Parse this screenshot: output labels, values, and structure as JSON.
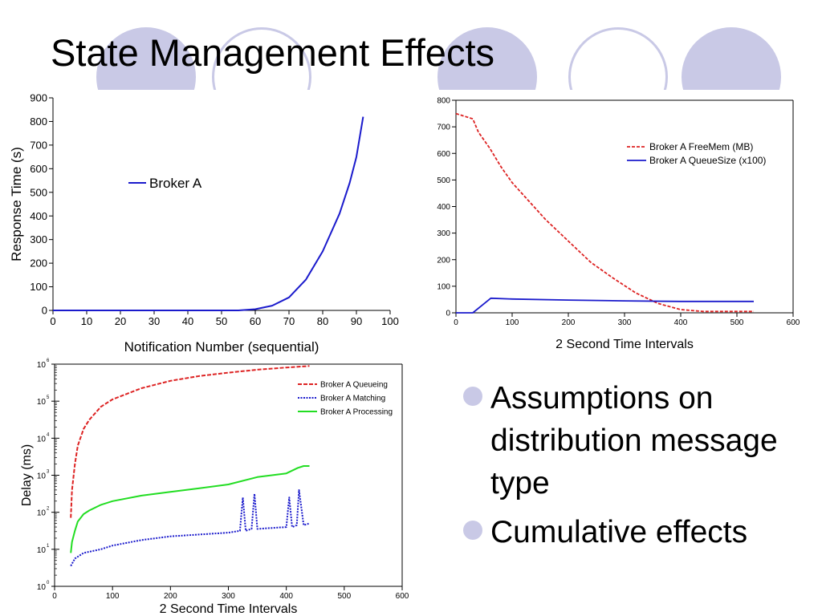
{
  "slide": {
    "title": "State Management Effects",
    "accent_color": "#c9c9e6",
    "bullets": [
      "Assumptions on distribution message type",
      "Cumulative effects"
    ]
  },
  "chart_data": [
    {
      "type": "line",
      "title": "",
      "xlabel": "Notification Number (sequential)",
      "ylabel": "Response Time (s)",
      "xlim": [
        0,
        100
      ],
      "ylim": [
        0,
        900
      ],
      "xticks": [
        0,
        10,
        20,
        30,
        40,
        50,
        60,
        70,
        80,
        90,
        100
      ],
      "yticks": [
        0,
        100,
        200,
        300,
        400,
        500,
        600,
        700,
        800,
        900
      ],
      "legend_position": "upper-left",
      "grid": false,
      "series": [
        {
          "name": "Broker A",
          "color": "#1a1acc",
          "x": [
            0,
            55,
            60,
            65,
            70,
            75,
            80,
            85,
            88,
            90,
            92
          ],
          "y": [
            0,
            0,
            5,
            20,
            55,
            130,
            250,
            410,
            540,
            650,
            820
          ]
        }
      ]
    },
    {
      "type": "line",
      "title": "",
      "xlabel": "2 Second Time Intervals",
      "ylabel": "",
      "xlim": [
        0,
        600
      ],
      "ylim": [
        0,
        800
      ],
      "xticks": [
        0,
        100,
        200,
        300,
        400,
        500,
        600
      ],
      "yticks": [
        0,
        100,
        200,
        300,
        400,
        500,
        600,
        700,
        800
      ],
      "legend_position": "upper-right",
      "grid": false,
      "series": [
        {
          "name": "Broker A FreeMem (MB)",
          "color": "#dd2222",
          "dash": "4,2",
          "x": [
            0,
            30,
            40,
            60,
            80,
            100,
            130,
            160,
            200,
            240,
            280,
            320,
            360,
            400,
            440,
            530
          ],
          "y": [
            750,
            730,
            680,
            620,
            550,
            490,
            420,
            350,
            270,
            190,
            130,
            75,
            35,
            12,
            5,
            5
          ]
        },
        {
          "name": "Broker A QueueSize (x100)",
          "color": "#1a1acc",
          "dash": "",
          "x": [
            0,
            30,
            62,
            100,
            200,
            300,
            400,
            530
          ],
          "y": [
            0,
            0,
            55,
            52,
            48,
            45,
            43,
            43
          ]
        }
      ]
    },
    {
      "type": "line",
      "title": "",
      "xlabel": "2 Second Time Intervals",
      "ylabel": "Delay (ms)",
      "xlim": [
        0,
        600
      ],
      "ylim": [
        0,
        6
      ],
      "y_scale": "log",
      "xticks": [
        0,
        100,
        200,
        300,
        400,
        500,
        600
      ],
      "ytick_labels": [
        "10",
        "10",
        "10",
        "10",
        "10",
        "10",
        "10"
      ],
      "ytick_exponents": [
        "0",
        "1",
        "2",
        "3",
        "4",
        "5",
        "6"
      ],
      "legend_position": "upper-right",
      "grid": false,
      "series": [
        {
          "name": "Broker A Queueing",
          "color": "#dd2222",
          "dash": "5,2",
          "x": [
            28,
            30,
            35,
            40,
            50,
            60,
            80,
            100,
            150,
            200,
            250,
            300,
            350,
            400,
            440
          ],
          "y": [
            1.85,
            2.6,
            3.3,
            3.8,
            4.25,
            4.5,
            4.85,
            5.05,
            5.35,
            5.55,
            5.68,
            5.77,
            5.85,
            5.91,
            5.95
          ]
        },
        {
          "name": "Broker A Matching",
          "color": "#1a1acc",
          "dash": "2,1.5",
          "x": [
            28,
            35,
            50,
            80,
            100,
            150,
            200,
            250,
            300,
            320,
            325,
            330,
            340,
            345,
            350,
            400,
            405,
            410,
            418,
            422,
            430,
            440
          ],
          "y": [
            0.55,
            0.75,
            0.9,
            1.0,
            1.1,
            1.25,
            1.35,
            1.4,
            1.45,
            1.5,
            2.4,
            1.5,
            1.55,
            2.5,
            1.55,
            1.6,
            2.4,
            1.6,
            1.65,
            2.6,
            1.65,
            1.7
          ]
        },
        {
          "name": "Broker A Processing",
          "color": "#22dd22",
          "dash": "",
          "x": [
            28,
            30,
            35,
            40,
            50,
            60,
            80,
            100,
            150,
            200,
            250,
            300,
            350,
            400,
            420,
            430,
            440
          ],
          "y": [
            0.9,
            1.2,
            1.5,
            1.75,
            1.95,
            2.05,
            2.2,
            2.3,
            2.45,
            2.55,
            2.65,
            2.75,
            2.95,
            3.05,
            3.2,
            3.25,
            3.25
          ]
        }
      ]
    }
  ]
}
